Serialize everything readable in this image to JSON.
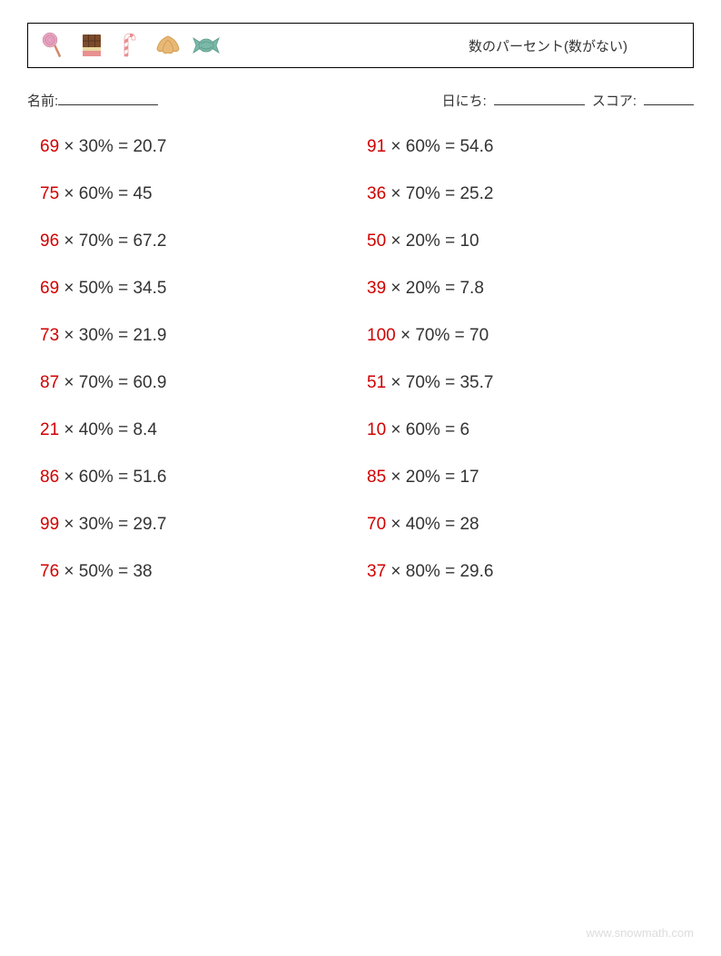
{
  "title": "数のパーセント(数がない)",
  "labels": {
    "name": "名前:",
    "date": "日にち:",
    "score": "スコア:"
  },
  "colors": {
    "number": "#d00000",
    "text": "#333333",
    "border": "#000000",
    "background": "#ffffff",
    "footer": "#bbbbbb"
  },
  "fonts": {
    "problem_size": 19,
    "title_size": 15,
    "meta_size": 15
  },
  "icons": [
    {
      "name": "lollipop",
      "color1": "#e8a5c0",
      "color2": "#d4896b"
    },
    {
      "name": "chocolate",
      "color1": "#7a4a2a",
      "color2": "#e89090"
    },
    {
      "name": "candy-cane",
      "color1": "#e89090",
      "color2": "#ffffff"
    },
    {
      "name": "croissant",
      "color1": "#e8b878",
      "color2": "#d4a050"
    },
    {
      "name": "wrapped-candy",
      "color1": "#7bb8a8",
      "color2": "#5a9888"
    }
  ],
  "problems_left": [
    {
      "n": "69",
      "p": "30",
      "r": "20.7"
    },
    {
      "n": "75",
      "p": "60",
      "r": "45"
    },
    {
      "n": "96",
      "p": "70",
      "r": "67.2"
    },
    {
      "n": "69",
      "p": "50",
      "r": "34.5"
    },
    {
      "n": "73",
      "p": "30",
      "r": "21.9"
    },
    {
      "n": "87",
      "p": "70",
      "r": "60.9"
    },
    {
      "n": "21",
      "p": "40",
      "r": "8.4"
    },
    {
      "n": "86",
      "p": "60",
      "r": "51.6"
    },
    {
      "n": "99",
      "p": "30",
      "r": "29.7"
    },
    {
      "n": "76",
      "p": "50",
      "r": "38"
    }
  ],
  "problems_right": [
    {
      "n": "91",
      "p": "60",
      "r": "54.6"
    },
    {
      "n": "36",
      "p": "70",
      "r": "25.2"
    },
    {
      "n": "50",
      "p": "20",
      "r": "10"
    },
    {
      "n": "39",
      "p": "20",
      "r": "7.8"
    },
    {
      "n": "100",
      "p": "70",
      "r": "70"
    },
    {
      "n": "51",
      "p": "70",
      "r": "35.7"
    },
    {
      "n": "10",
      "p": "60",
      "r": "6"
    },
    {
      "n": "85",
      "p": "20",
      "r": "17"
    },
    {
      "n": "70",
      "p": "40",
      "r": "28"
    },
    {
      "n": "37",
      "p": "80",
      "r": "29.6"
    }
  ],
  "footer": "www.snowmath.com"
}
